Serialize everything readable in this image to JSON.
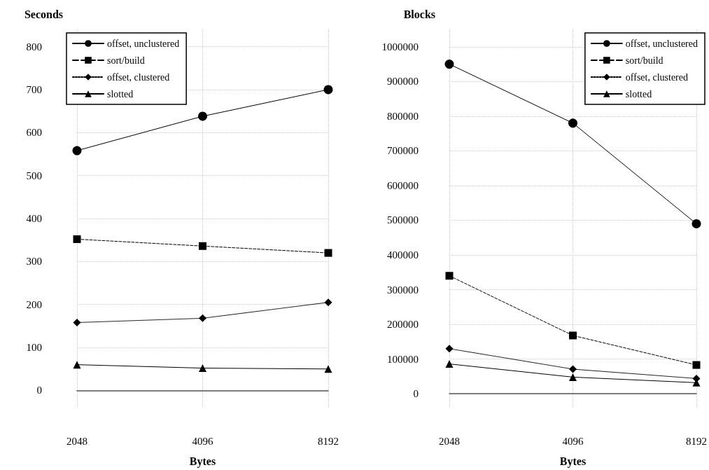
{
  "chart_data": [
    {
      "type": "line",
      "ylabel": "Seconds",
      "xlabel": "Bytes",
      "categories": [
        "2048",
        "4096",
        "8192"
      ],
      "ylim": [
        -40,
        840
      ],
      "yticks": [
        0,
        100,
        200,
        300,
        400,
        500,
        600,
        700,
        800
      ],
      "grid": true,
      "legend": "top left",
      "series": [
        {
          "name": "offset, unclustered",
          "color": "#000000",
          "marker": "circle",
          "line_style": "solid",
          "values": [
            558,
            638,
            700
          ]
        },
        {
          "name": "sort/build",
          "color": "#000000",
          "marker": "square",
          "line_style": "dashed",
          "values": [
            352,
            336,
            320
          ]
        },
        {
          "name": "offset, clustered",
          "color": "#000000",
          "marker": "diamond",
          "line_style": "dotted",
          "values": [
            158,
            168,
            205
          ]
        },
        {
          "name": "slotted",
          "color": "#000000",
          "marker": "triangle",
          "line_style": "solid",
          "values": [
            60,
            52,
            50
          ]
        }
      ]
    },
    {
      "type": "line",
      "ylabel": "Blocks",
      "xlabel": "Bytes",
      "categories": [
        "2048",
        "4096",
        "8192"
      ],
      "ylim": [
        -40000,
        1050000
      ],
      "yticks": [
        0,
        100000,
        200000,
        300000,
        400000,
        500000,
        600000,
        700000,
        800000,
        900000,
        1000000
      ],
      "grid": true,
      "legend": "top right",
      "series": [
        {
          "name": "offset, unclustered",
          "color": "#000000",
          "marker": "circle",
          "line_style": "solid",
          "values": [
            950000,
            780000,
            490000
          ]
        },
        {
          "name": "sort/build",
          "color": "#000000",
          "marker": "square",
          "line_style": "dashed",
          "values": [
            340000,
            168000,
            83000
          ]
        },
        {
          "name": "offset, clustered",
          "color": "#000000",
          "marker": "diamond",
          "line_style": "dotted",
          "values": [
            130000,
            71000,
            44000
          ]
        },
        {
          "name": "slotted",
          "color": "#000000",
          "marker": "triangle",
          "line_style": "solid",
          "values": [
            86000,
            48000,
            32000
          ]
        }
      ]
    }
  ]
}
